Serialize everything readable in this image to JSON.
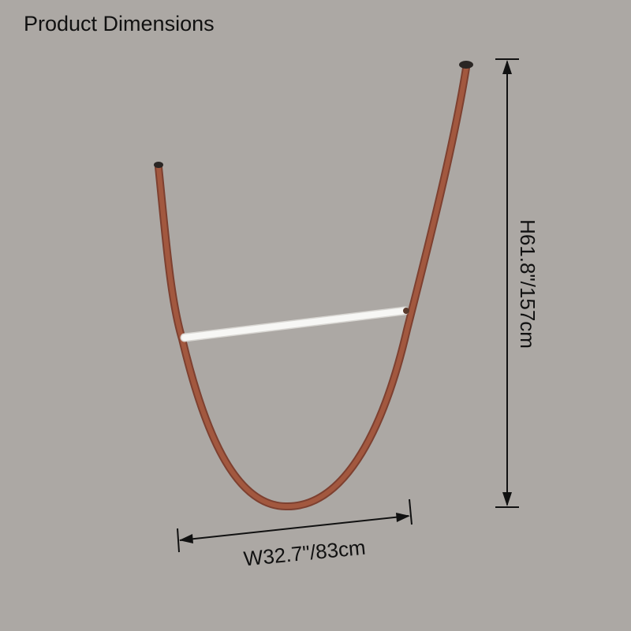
{
  "header": {
    "title": "Product Dimensions"
  },
  "dimensions": {
    "width": "W32.7\"/83cm",
    "height": "H61.8\"/157cm"
  }
}
